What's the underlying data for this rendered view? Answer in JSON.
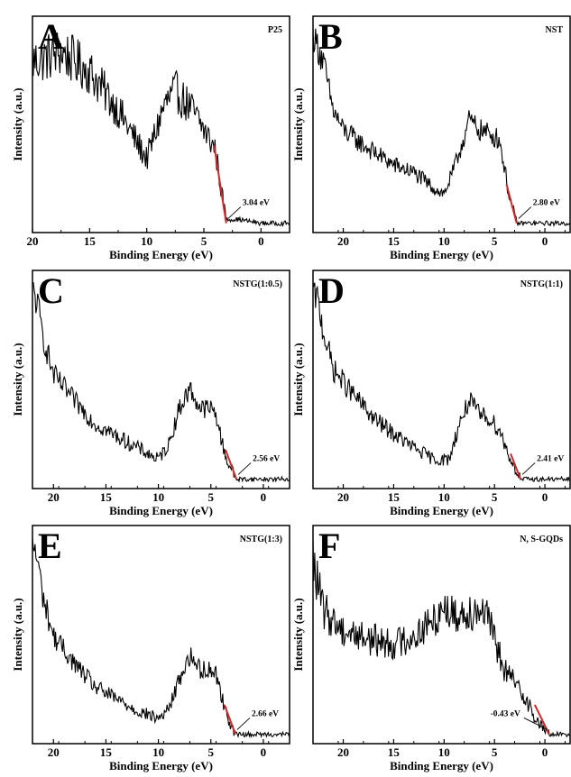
{
  "chart_data": [
    {
      "type": "line",
      "panel": "A",
      "sample": "P25",
      "xlabel": "Binding Energy (eV)",
      "ylabel": "Intensity (a.u.)",
      "xlim": [
        20,
        -2.5
      ],
      "ylim": [
        0,
        1
      ],
      "xticks": [
        20,
        15,
        10,
        5,
        0
      ],
      "band_gap_label": "3.04 eV",
      "band_gap_ev": 3.04,
      "tangent": {
        "x": [
          4.1,
          3.04
        ],
        "y": [
          0.42,
          0.02
        ]
      },
      "series": [
        {
          "x": [
            20,
            17.5,
            15,
            12.5,
            10,
            8.5,
            7.5,
            6,
            5,
            4,
            3.5,
            3.04,
            2,
            0,
            -2.5
          ],
          "y": [
            0.85,
            0.9,
            0.8,
            0.6,
            0.35,
            0.62,
            0.7,
            0.6,
            0.5,
            0.4,
            0.2,
            0.04,
            0.04,
            0.02,
            0.02
          ]
        }
      ]
    },
    {
      "type": "line",
      "panel": "B",
      "sample": "NST",
      "xlabel": "Binding Energy (eV)",
      "ylabel": "Intensity (a.u.)",
      "xlim": [
        23,
        -2.5
      ],
      "ylim": [
        0,
        1
      ],
      "xticks": [
        20,
        15,
        10,
        5,
        0
      ],
      "band_gap_label": "2.80 eV",
      "band_gap_ev": 2.8,
      "tangent": {
        "x": [
          3.8,
          2.8
        ],
        "y": [
          0.22,
          0.02
        ]
      },
      "series": [
        {
          "x": [
            23,
            22,
            21,
            20,
            18,
            15,
            13,
            11,
            10,
            9,
            7.5,
            6.5,
            5.5,
            4.5,
            4,
            3.5,
            2.8,
            1,
            -2.5
          ],
          "y": [
            1.0,
            0.85,
            0.6,
            0.5,
            0.42,
            0.32,
            0.28,
            0.2,
            0.17,
            0.3,
            0.55,
            0.5,
            0.48,
            0.45,
            0.3,
            0.15,
            0.02,
            0.02,
            0.02
          ]
        }
      ]
    },
    {
      "type": "line",
      "panel": "C",
      "sample": "NSTG(1:0.5)",
      "xlabel": "Binding Energy (eV)",
      "ylabel": "Intensity (a.u.)",
      "xlim": [
        22,
        -2.5
      ],
      "ylim": [
        0,
        1
      ],
      "xticks": [
        20,
        15,
        10,
        5,
        0
      ],
      "band_gap_label": "2.56 eV",
      "band_gap_ev": 2.56,
      "tangent": {
        "x": [
          3.6,
          2.56
        ],
        "y": [
          0.17,
          0.02
        ]
      },
      "series": [
        {
          "x": [
            22,
            21.5,
            21,
            20,
            18,
            16,
            14,
            12,
            10,
            9,
            8,
            7,
            6,
            5,
            4.5,
            4,
            3.5,
            2.56,
            1,
            -2.5
          ],
          "y": [
            1.0,
            0.9,
            0.75,
            0.55,
            0.42,
            0.3,
            0.24,
            0.18,
            0.12,
            0.2,
            0.38,
            0.48,
            0.38,
            0.38,
            0.35,
            0.22,
            0.12,
            0.02,
            0.02,
            0.02
          ]
        }
      ]
    },
    {
      "type": "line",
      "panel": "D",
      "sample": "NSTG(1:1)",
      "xlabel": "Binding Energy (eV)",
      "ylabel": "Intensity (a.u.)",
      "xlim": [
        23,
        -2.5
      ],
      "ylim": [
        0,
        1
      ],
      "xticks": [
        20,
        15,
        10,
        5,
        0
      ],
      "band_gap_label": "2.41 eV",
      "band_gap_ev": 2.41,
      "tangent": {
        "x": [
          3.4,
          2.41
        ],
        "y": [
          0.15,
          0.02
        ]
      },
      "series": [
        {
          "x": [
            23,
            22.5,
            22,
            21,
            19,
            17,
            15,
            13,
            11,
            9.5,
            8.5,
            7.5,
            6.5,
            5.5,
            4.5,
            4,
            3.4,
            2.41,
            1,
            -2.5
          ],
          "y": [
            1.0,
            0.92,
            0.78,
            0.58,
            0.45,
            0.33,
            0.25,
            0.18,
            0.12,
            0.12,
            0.3,
            0.42,
            0.35,
            0.33,
            0.27,
            0.2,
            0.12,
            0.02,
            0.02,
            0.02
          ]
        }
      ]
    },
    {
      "type": "line",
      "panel": "E",
      "sample": "NSTG(1:3)",
      "xlabel": "Binding Energy (eV)",
      "ylabel": "Intensity (a.u.)",
      "xlim": [
        22,
        -2.5
      ],
      "ylim": [
        0,
        1
      ],
      "xticks": [
        20,
        15,
        10,
        5,
        0
      ],
      "band_gap_label": "2.66 eV",
      "band_gap_ev": 2.66,
      "tangent": {
        "x": [
          3.7,
          2.66
        ],
        "y": [
          0.17,
          0.02
        ]
      },
      "series": [
        {
          "x": [
            22,
            21.5,
            21,
            20,
            18,
            16,
            14,
            12,
            10,
            9,
            8,
            7,
            6,
            5,
            4.5,
            4,
            3.5,
            2.66,
            1,
            -2.5
          ],
          "y": [
            1.0,
            0.9,
            0.72,
            0.52,
            0.38,
            0.26,
            0.2,
            0.14,
            0.1,
            0.15,
            0.3,
            0.42,
            0.35,
            0.35,
            0.33,
            0.22,
            0.12,
            0.02,
            0.02,
            0.02
          ]
        }
      ]
    },
    {
      "type": "line",
      "panel": "F",
      "sample": "N, S-GQDs",
      "xlabel": "Binding Energy (eV)",
      "ylabel": "Intensity (a.u.)",
      "xlim": [
        23,
        -2.5
      ],
      "ylim": [
        0,
        1
      ],
      "xticks": [
        20,
        15,
        10,
        5,
        0
      ],
      "band_gap_label": "-0.43 eV",
      "band_gap_ev": -0.43,
      "tangent": {
        "x": [
          1.0,
          -0.43
        ],
        "y": [
          0.17,
          0.02
        ]
      },
      "series": [
        {
          "x": [
            23,
            22.5,
            22,
            20,
            17,
            15,
            13,
            11,
            10,
            9,
            7.5,
            6,
            5,
            4,
            3,
            2,
            1,
            0,
            -0.43,
            -1,
            -2.5
          ],
          "y": [
            0.9,
            0.78,
            0.65,
            0.55,
            0.5,
            0.48,
            0.52,
            0.6,
            0.68,
            0.62,
            0.65,
            0.66,
            0.5,
            0.35,
            0.28,
            0.22,
            0.1,
            0.04,
            0.02,
            0.02,
            0.02
          ]
        }
      ]
    }
  ],
  "colors": {
    "trace": "#000000",
    "tangent": "#d62728",
    "background": "#ffffff"
  }
}
